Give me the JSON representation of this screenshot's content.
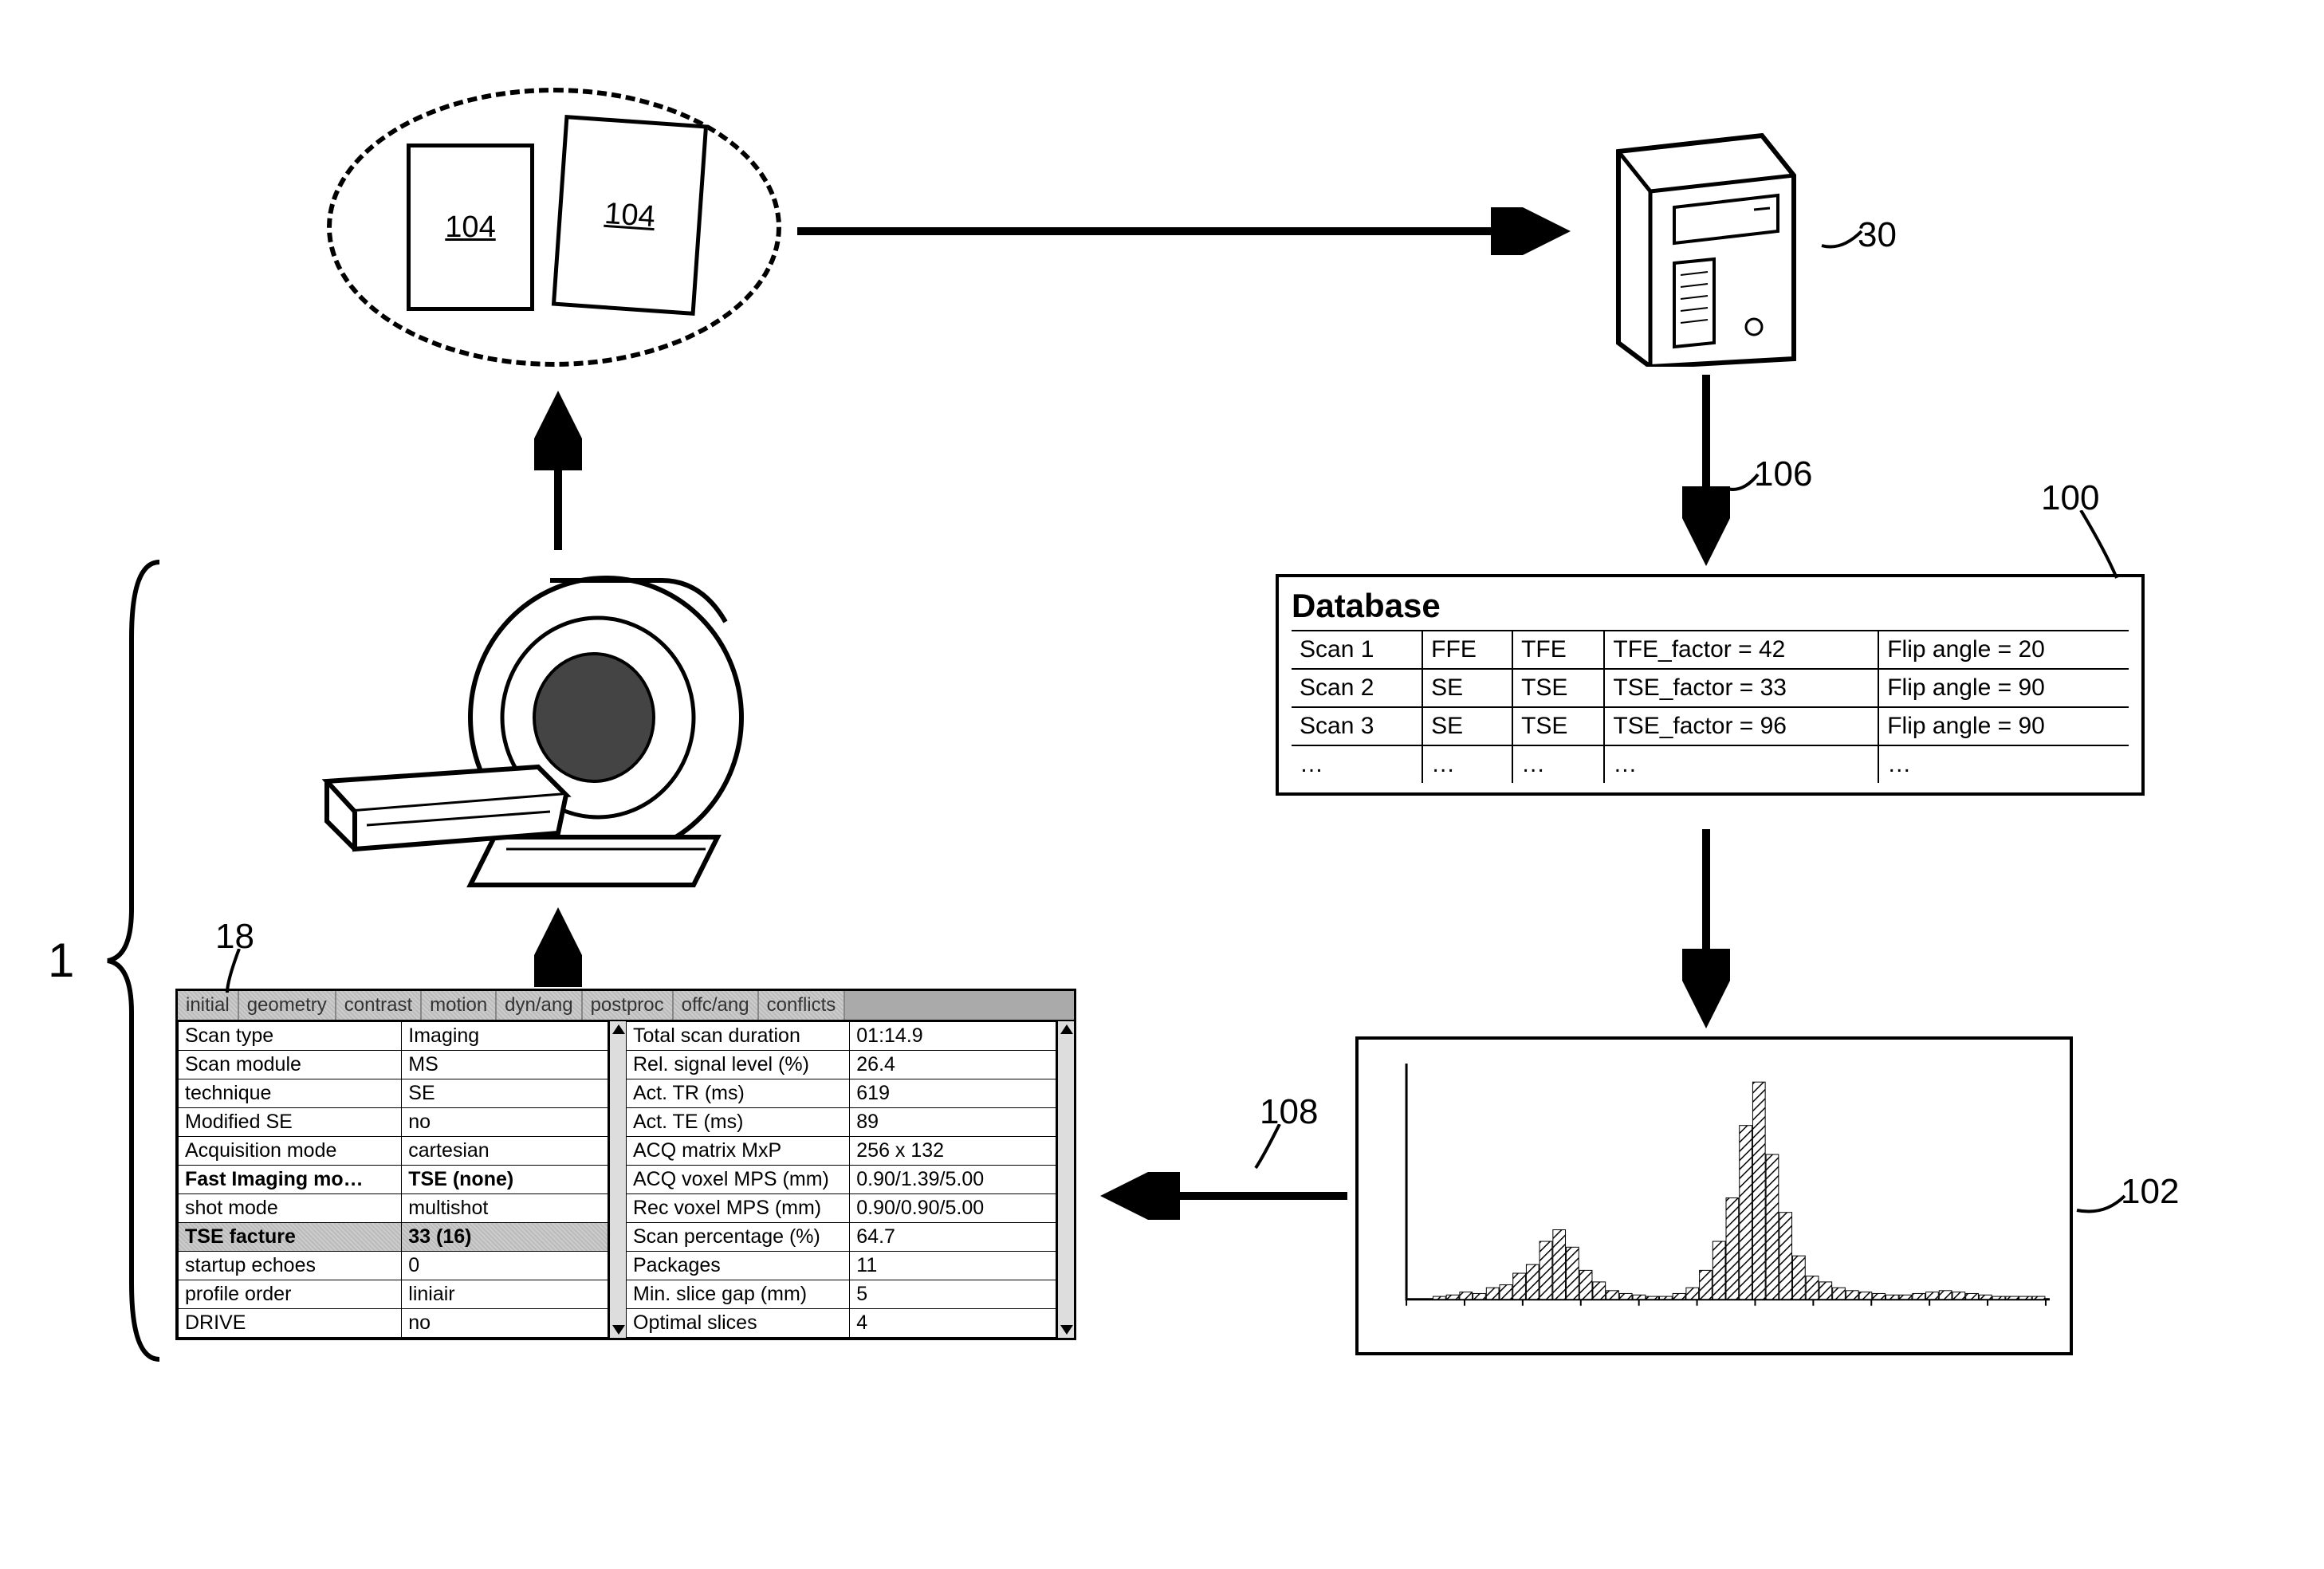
{
  "labels": {
    "doc1": "104",
    "doc2": "104",
    "server": "30",
    "arrow_server_db": "106",
    "db_callout": "100",
    "histo_callout": "102",
    "arrow_histo_panel": "108",
    "panel_callout": "18",
    "brace": "1"
  },
  "database": {
    "title": "Database",
    "columns": 5,
    "rows": [
      [
        "Scan 1",
        "FFE",
        "TFE",
        "TFE_factor = 42",
        "Flip angle = 20"
      ],
      [
        "Scan 2",
        "SE",
        "TSE",
        "TSE_factor = 33",
        "Flip angle = 90"
      ],
      [
        "Scan 3",
        "SE",
        "TSE",
        "TSE_factor = 96",
        "Flip angle = 90"
      ],
      [
        "…",
        "…",
        "…",
        "…",
        "…"
      ]
    ]
  },
  "panel": {
    "tabs": [
      "initial",
      "geometry",
      "contrast",
      "motion",
      "dyn/ang",
      "postproc",
      "offc/ang",
      "conflicts"
    ],
    "left_rows": [
      {
        "label": "Scan type",
        "value": "Imaging"
      },
      {
        "label": "Scan module",
        "value": "MS"
      },
      {
        "label": "technique",
        "value": "SE"
      },
      {
        "label": "Modified SE",
        "value": "no"
      },
      {
        "label": "Acquisition mode",
        "value": "cartesian"
      },
      {
        "label": "Fast Imaging mo…",
        "value": "TSE (none)",
        "bold": true
      },
      {
        "label": "shot mode",
        "value": "multishot"
      },
      {
        "label": "TSE facture",
        "value": "33 (16)",
        "hl": true
      },
      {
        "label": "startup echoes",
        "value": "0"
      },
      {
        "label": "profile order",
        "value": "liniair"
      },
      {
        "label": "DRIVE",
        "value": "no"
      }
    ],
    "right_rows": [
      {
        "label": "Total scan duration",
        "value": "01:14.9"
      },
      {
        "label": "Rel. signal level (%)",
        "value": "26.4"
      },
      {
        "label": "Act. TR (ms)",
        "value": "619"
      },
      {
        "label": "Act. TE (ms)",
        "value": "89"
      },
      {
        "label": "ACQ matrix MxP",
        "value": "256 x 132"
      },
      {
        "label": "ACQ voxel MPS (mm)",
        "value": "0.90/1.39/5.00"
      },
      {
        "label": "Rec voxel MPS (mm)",
        "value": "0.90/0.90/5.00"
      },
      {
        "label": "Scan percentage (%)",
        "value": "64.7"
      },
      {
        "label": "Packages",
        "value": "11"
      },
      {
        "label": "Min. slice gap (mm)",
        "value": "5"
      },
      {
        "label": "Optimal slices",
        "value": "4"
      }
    ]
  },
  "histogram": {
    "type": "histogram",
    "n_bins": 48,
    "values": [
      0,
      0,
      2,
      3,
      5,
      4,
      8,
      10,
      18,
      24,
      40,
      48,
      36,
      20,
      12,
      6,
      4,
      3,
      2,
      2,
      4,
      8,
      20,
      40,
      70,
      120,
      150,
      100,
      60,
      30,
      16,
      12,
      8,
      6,
      5,
      4,
      3,
      3,
      4,
      5,
      6,
      5,
      4,
      3,
      2,
      2,
      2,
      2
    ],
    "ylim": [
      0,
      160
    ],
    "bar_color": "#000000",
    "hatch": true,
    "background_color": "#ffffff",
    "axis_color": "#000000",
    "n_xticks": 12,
    "line_width": 3
  },
  "styling": {
    "stroke": "#000000",
    "dash": "6,10",
    "font": "Arial",
    "ellipse_dash_width": 6,
    "box_border_width": 4,
    "arrow_width": 7,
    "arrowhead_size": 30
  }
}
